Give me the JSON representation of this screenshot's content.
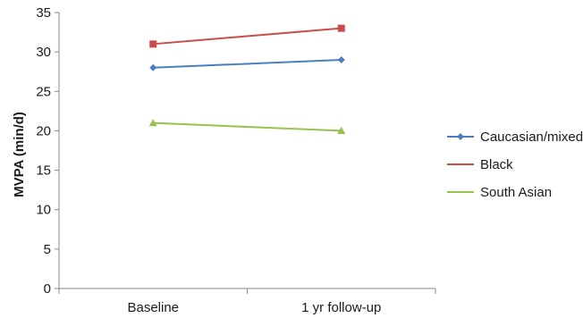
{
  "chart_data": {
    "type": "line",
    "title": "",
    "xlabel": "",
    "ylabel": "MVPA  (min/d)",
    "categories": [
      "Baseline",
      "1 yr follow-up"
    ],
    "ylim": [
      0,
      35
    ],
    "yticks": [
      0,
      5,
      10,
      15,
      20,
      25,
      30,
      35
    ],
    "grid": false,
    "legend_position": "right",
    "series": [
      {
        "name": "Caucasian/mixed",
        "values": [
          28,
          29
        ],
        "color": "#4a7ec1",
        "marker": "diamond"
      },
      {
        "name": "Black",
        "values": [
          31,
          33
        ],
        "color": "#c94b4b",
        "marker": "square"
      },
      {
        "name": "South Asian",
        "values": [
          21,
          20
        ],
        "color": "#99c24d",
        "marker": "triangle"
      }
    ]
  }
}
